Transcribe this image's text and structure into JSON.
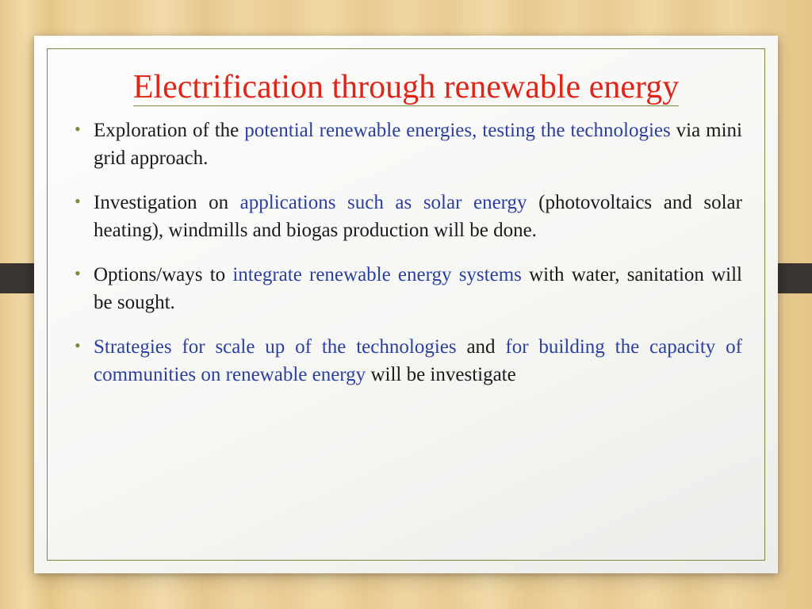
{
  "colors": {
    "title": "#e02518",
    "highlight": "#2b3fa0",
    "body": "#1a1a1a",
    "bullet": "#7a8a3a",
    "border": "#7a8a3a",
    "ribbon": "#3a3530",
    "card_bg_start": "#fdfdfc",
    "card_bg_end": "#ececea"
  },
  "typography": {
    "title_fontsize": 42,
    "body_fontsize": 25,
    "font_family": "Garamond / serif"
  },
  "title": "Electrification through renewable energy",
  "bullets": [
    {
      "segments": [
        {
          "text": "Exploration of the ",
          "hl": false
        },
        {
          "text": "potential renewable energies, testing the technologies ",
          "hl": true
        },
        {
          "text": "via mini grid approach.",
          "hl": false
        }
      ]
    },
    {
      "segments": [
        {
          "text": "Investigation on ",
          "hl": false
        },
        {
          "text": "applications such as solar energy ",
          "hl": true
        },
        {
          "text": "(photovoltaics and solar heating), windmills and biogas production will be done.",
          "hl": false
        }
      ]
    },
    {
      "segments": [
        {
          "text": "Options/ways to ",
          "hl": false
        },
        {
          "text": "integrate renewable energy systems ",
          "hl": true
        },
        {
          "text": "with water, sanitation will be sought.",
          "hl": false
        }
      ]
    },
    {
      "segments": [
        {
          "text": "Strategies for scale up of the technologies ",
          "hl": true
        },
        {
          "text": "and ",
          "hl": false
        },
        {
          "text": "for building the capacity of communities on renewable energy ",
          "hl": true
        },
        {
          "text": "will be investigate",
          "hl": false
        }
      ]
    }
  ]
}
